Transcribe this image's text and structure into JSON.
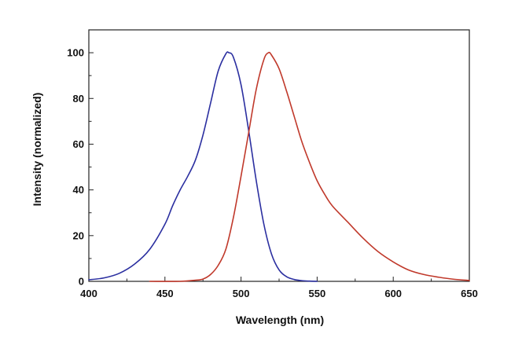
{
  "chart_data": {
    "type": "line",
    "title": "",
    "xlabel": "Wavelength (nm)",
    "ylabel": "Intensity (normalized)",
    "xlim": [
      400,
      650
    ],
    "ylim": [
      0,
      110
    ],
    "x_ticks": [
      400,
      450,
      500,
      550,
      600,
      650
    ],
    "y_ticks": [
      0,
      20,
      40,
      60,
      80,
      100
    ],
    "grid": false,
    "legend": "none",
    "series": [
      {
        "color": "#2b2fa0",
        "x": [
          400,
          410,
          420,
          430,
          440,
          450,
          455,
          460,
          465,
          470,
          475,
          480,
          485,
          490,
          492,
          495,
          500,
          505,
          510,
          515,
          520,
          525,
          530,
          535,
          540,
          545,
          550
        ],
        "y": [
          0.7,
          1.5,
          3.5,
          7.5,
          14,
          25,
          33,
          40,
          46,
          53,
          64,
          78,
          92,
          99.5,
          100,
          98,
          86,
          66,
          44,
          25,
          12,
          5,
          2,
          0.8,
          0.3,
          0.1,
          0
        ]
      },
      {
        "color": "#c0392b",
        "x": [
          440,
          460,
          470,
          475,
          480,
          485,
          490,
          495,
          500,
          505,
          510,
          515,
          518,
          520,
          525,
          530,
          535,
          540,
          545,
          550,
          555,
          560,
          570,
          580,
          590,
          600,
          610,
          620,
          630,
          640,
          650
        ],
        "y": [
          0,
          0,
          0.5,
          1,
          3,
          7,
          14,
          28,
          46,
          65,
          84,
          97,
          100,
          99,
          93,
          83,
          72,
          61,
          52,
          44,
          38,
          33,
          26,
          19,
          13,
          8.5,
          5,
          3,
          1.8,
          0.9,
          0.4
        ]
      }
    ]
  }
}
